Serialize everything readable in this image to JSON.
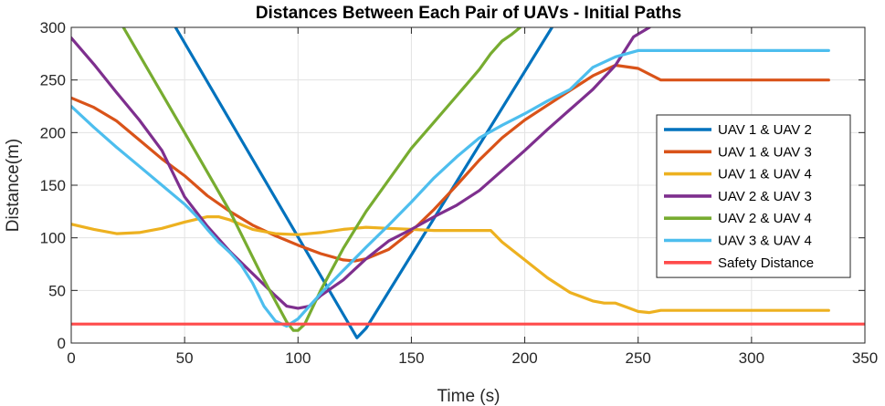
{
  "chart_data": {
    "type": "line",
    "title": "Distances Between Each Pair of UAVs - Initial Paths",
    "xlabel": "Time (s)",
    "ylabel": "Distance(m)",
    "xlim": [
      0,
      350
    ],
    "ylim": [
      0,
      300
    ],
    "xticks": [
      0,
      50,
      100,
      150,
      200,
      250,
      300,
      350
    ],
    "yticks": [
      0,
      50,
      100,
      150,
      200,
      250,
      300
    ],
    "grid": true,
    "legend_position": "right",
    "series": [
      {
        "name": "UAV 1 & UAV 2",
        "color": "#0072BD",
        "points": [
          [
            46,
            300
          ],
          [
            126,
            5
          ],
          [
            130,
            14
          ],
          [
            212,
            300
          ]
        ]
      },
      {
        "name": "UAV 1 & UAV 3",
        "color": "#D95319",
        "points": [
          [
            0,
            233
          ],
          [
            10,
            224
          ],
          [
            20,
            211
          ],
          [
            30,
            193
          ],
          [
            40,
            175
          ],
          [
            50,
            159
          ],
          [
            60,
            140
          ],
          [
            70,
            125
          ],
          [
            80,
            112
          ],
          [
            90,
            102
          ],
          [
            100,
            93
          ],
          [
            110,
            85
          ],
          [
            120,
            79
          ],
          [
            125,
            78
          ],
          [
            130,
            80
          ],
          [
            140,
            89
          ],
          [
            150,
            106
          ],
          [
            160,
            127
          ],
          [
            170,
            150
          ],
          [
            180,
            174
          ],
          [
            190,
            195
          ],
          [
            200,
            212
          ],
          [
            210,
            226
          ],
          [
            220,
            240
          ],
          [
            230,
            254
          ],
          [
            240,
            264
          ],
          [
            250,
            261
          ],
          [
            260,
            250
          ],
          [
            270,
            250
          ],
          [
            300,
            250
          ],
          [
            334,
            250
          ]
        ]
      },
      {
        "name": "UAV 1 & UAV 4",
        "color": "#EDB120",
        "points": [
          [
            0,
            113
          ],
          [
            10,
            108
          ],
          [
            20,
            104
          ],
          [
            30,
            105
          ],
          [
            40,
            109
          ],
          [
            50,
            115
          ],
          [
            60,
            120
          ],
          [
            65,
            120
          ],
          [
            70,
            117
          ],
          [
            80,
            108
          ],
          [
            90,
            104
          ],
          [
            100,
            103
          ],
          [
            110,
            105
          ],
          [
            120,
            108
          ],
          [
            130,
            110
          ],
          [
            140,
            109
          ],
          [
            150,
            108
          ],
          [
            160,
            107
          ],
          [
            170,
            107
          ],
          [
            180,
            107
          ],
          [
            185,
            107
          ],
          [
            190,
            96
          ],
          [
            200,
            79
          ],
          [
            210,
            62
          ],
          [
            220,
            48
          ],
          [
            230,
            40
          ],
          [
            235,
            38
          ],
          [
            240,
            38
          ],
          [
            245,
            34
          ],
          [
            250,
            30
          ],
          [
            255,
            29
          ],
          [
            260,
            31
          ],
          [
            270,
            31
          ],
          [
            300,
            31
          ],
          [
            334,
            31
          ]
        ]
      },
      {
        "name": "UAV 2 & UAV 3",
        "color": "#7E2F8E",
        "points": [
          [
            0,
            290
          ],
          [
            10,
            265
          ],
          [
            20,
            238
          ],
          [
            30,
            212
          ],
          [
            40,
            183
          ],
          [
            50,
            139
          ],
          [
            60,
            111
          ],
          [
            70,
            87
          ],
          [
            80,
            66
          ],
          [
            90,
            45
          ],
          [
            95,
            35
          ],
          [
            100,
            33
          ],
          [
            105,
            35
          ],
          [
            110,
            45
          ],
          [
            120,
            60
          ],
          [
            130,
            80
          ],
          [
            140,
            97
          ],
          [
            150,
            108
          ],
          [
            160,
            120
          ],
          [
            170,
            131
          ],
          [
            180,
            145
          ],
          [
            190,
            164
          ],
          [
            200,
            183
          ],
          [
            210,
            203
          ],
          [
            220,
            222
          ],
          [
            230,
            241
          ],
          [
            240,
            264
          ],
          [
            248,
            291
          ],
          [
            255,
            300
          ]
        ]
      },
      {
        "name": "UAV 2 & UAV 4",
        "color": "#77AC30",
        "points": [
          [
            23,
            300
          ],
          [
            50,
            200
          ],
          [
            70,
            125
          ],
          [
            85,
            60
          ],
          [
            95,
            20
          ],
          [
            98,
            12
          ],
          [
            100,
            12
          ],
          [
            103,
            18
          ],
          [
            110,
            50
          ],
          [
            120,
            90
          ],
          [
            130,
            125
          ],
          [
            140,
            155
          ],
          [
            150,
            185
          ],
          [
            160,
            210
          ],
          [
            170,
            235
          ],
          [
            180,
            260
          ],
          [
            185,
            275
          ],
          [
            190,
            287
          ],
          [
            194,
            293
          ],
          [
            198,
            300
          ]
        ]
      },
      {
        "name": "UAV 3 & UAV 4",
        "color": "#4DBEEE",
        "points": [
          [
            0,
            225
          ],
          [
            10,
            205
          ],
          [
            20,
            186
          ],
          [
            30,
            168
          ],
          [
            40,
            150
          ],
          [
            50,
            132
          ],
          [
            55,
            121
          ],
          [
            60,
            108
          ],
          [
            65,
            96
          ],
          [
            70,
            86
          ],
          [
            75,
            74
          ],
          [
            80,
            57
          ],
          [
            85,
            35
          ],
          [
            90,
            21
          ],
          [
            95,
            16
          ],
          [
            100,
            23
          ],
          [
            110,
            47
          ],
          [
            120,
            69
          ],
          [
            130,
            91
          ],
          [
            140,
            112
          ],
          [
            150,
            134
          ],
          [
            160,
            157
          ],
          [
            170,
            177
          ],
          [
            180,
            195
          ],
          [
            190,
            207
          ],
          [
            200,
            218
          ],
          [
            210,
            230
          ],
          [
            220,
            241
          ],
          [
            230,
            262
          ],
          [
            240,
            272
          ],
          [
            250,
            278
          ],
          [
            260,
            278
          ],
          [
            270,
            278
          ],
          [
            300,
            278
          ],
          [
            334,
            278
          ]
        ]
      },
      {
        "name": "Safety Distance",
        "color": "#FF4B4B",
        "points": [
          [
            0,
            18
          ],
          [
            350,
            18
          ]
        ]
      }
    ]
  }
}
